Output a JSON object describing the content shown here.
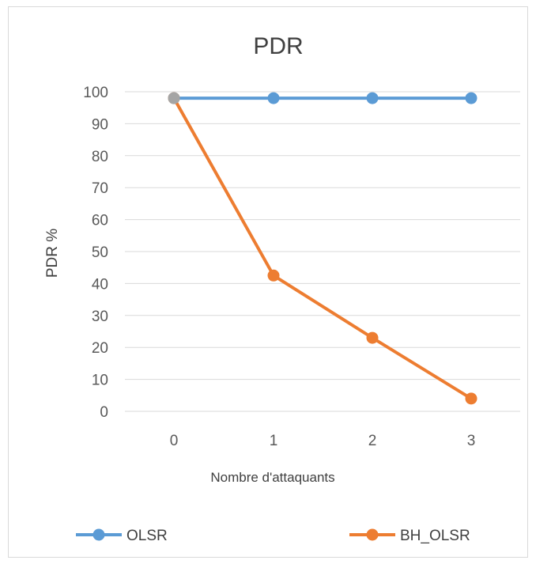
{
  "chart_data": {
    "type": "line",
    "title": "PDR",
    "xlabel": "Nombre d'attaquants",
    "ylabel": "PDR %",
    "categories": [
      "0",
      "1",
      "2",
      "3"
    ],
    "ylim": [
      0,
      100
    ],
    "yticks": [
      "0",
      "10",
      "20",
      "30",
      "40",
      "50",
      "60",
      "70",
      "80",
      "90",
      "100"
    ],
    "grid": true,
    "legend_position": "bottom",
    "series": [
      {
        "name": "OLSR",
        "values": [
          98,
          98,
          98,
          98
        ],
        "color": "#5b9bd5"
      },
      {
        "name": "BH_OLSR",
        "values": [
          98,
          42.5,
          23,
          4
        ],
        "color": "#ed7d31"
      }
    ]
  }
}
